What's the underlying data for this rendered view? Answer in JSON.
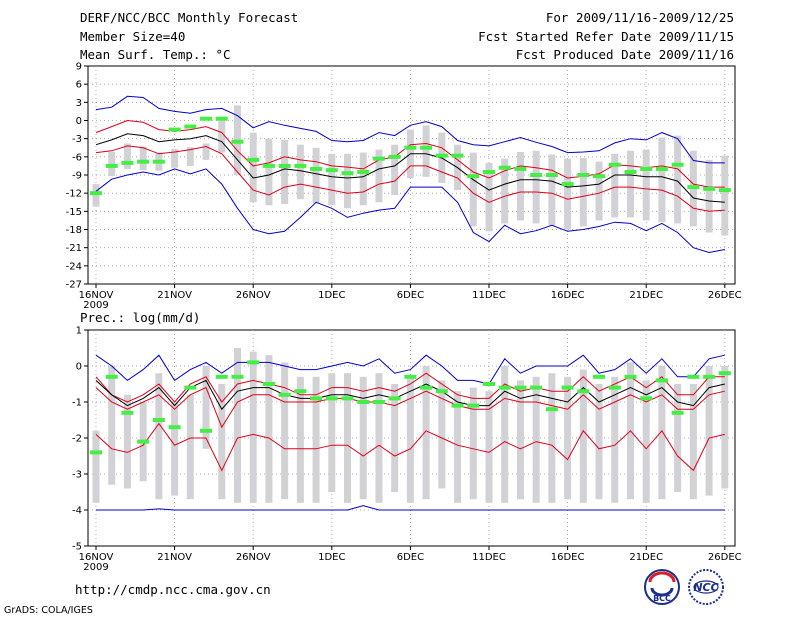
{
  "header": {
    "title": "DERF/NCC/BCC Monthly Forecast",
    "member_size": "Member Size=40",
    "variable": "Mean Surf. Temp.: °C",
    "period": "For 2009/11/16-2009/12/25",
    "start_date": "Fcst Started Refer Date 2009/11/15",
    "produced_date": "Fcst Produced Date 2009/11/16"
  },
  "footer": {
    "url": "http://cmdp.ncc.cma.gov.cn",
    "credit": "GrADS: COLA/IGES",
    "logo_left": "BCC",
    "logo_right": "NCC"
  },
  "colors": {
    "outer": "#0000cc",
    "inner": "#e00018",
    "median": "#000000",
    "box": "#d2d2d6",
    "obs": "#44ee44",
    "grid": "#999999"
  },
  "chart_data": [
    {
      "type": "line",
      "title": "Mean Surf. Temp.: °C",
      "ylim": [
        -27,
        9
      ],
      "yticks": [
        9,
        6,
        3,
        0,
        -3,
        -6,
        -9,
        -12,
        -15,
        -18,
        -21,
        -24,
        -27
      ],
      "xticks": [
        {
          "day": 0,
          "label": "16NOV",
          "sub": "2009"
        },
        {
          "day": 5,
          "label": "21NOV"
        },
        {
          "day": 10,
          "label": "26NOV"
        },
        {
          "day": 15,
          "label": "1DEC"
        },
        {
          "day": 20,
          "label": "6DEC"
        },
        {
          "day": 25,
          "label": "11DEC"
        },
        {
          "day": 30,
          "label": "16DEC"
        },
        {
          "day": 35,
          "label": "21DEC"
        },
        {
          "day": 40,
          "label": "26DEC"
        }
      ],
      "series": [
        {
          "name": "max",
          "role": "outer",
          "values": [
            1.8,
            2.2,
            4.0,
            3.8,
            2.0,
            1.5,
            1.2,
            1.8,
            2.0,
            0.8,
            -1.2,
            -0.2,
            -0.8,
            -1.3,
            -1.8,
            -3.3,
            -3.5,
            -3.3,
            -2.0,
            -2.5,
            -0.8,
            -0.2,
            -1.0,
            -3.3,
            -4.0,
            -4.2,
            -3.5,
            -2.8,
            -3.6,
            -4.3,
            -5.3,
            -5.2,
            -5.0,
            -3.7,
            -3.0,
            -3.2,
            -2.0,
            -3.0,
            -6.6,
            -7.0,
            -7.0
          ]
        },
        {
          "name": "p90",
          "role": "inner",
          "values": [
            -2.0,
            -1.0,
            0.0,
            -0.3,
            -1.5,
            -1.8,
            -1.5,
            -1.0,
            -2.0,
            -5.0,
            -7.5,
            -7.0,
            -6.0,
            -6.5,
            -6.8,
            -7.5,
            -7.7,
            -8.0,
            -6.5,
            -6.0,
            -4.0,
            -3.8,
            -4.5,
            -6.5,
            -8.5,
            -9.5,
            -8.3,
            -7.5,
            -7.8,
            -8.2,
            -9.5,
            -9.2,
            -8.8,
            -7.3,
            -7.5,
            -7.8,
            -7.5,
            -8.0,
            -10.5,
            -11.0,
            -11.0
          ]
        },
        {
          "name": "median",
          "role": "median",
          "values": [
            -4.0,
            -3.2,
            -2.2,
            -2.5,
            -3.5,
            -3.2,
            -3.0,
            -2.5,
            -3.5,
            -6.5,
            -9.5,
            -9.0,
            -8.0,
            -8.3,
            -8.8,
            -9.3,
            -9.5,
            -9.3,
            -8.0,
            -7.5,
            -5.5,
            -5.5,
            -6.2,
            -7.8,
            -9.8,
            -11.5,
            -10.5,
            -9.8,
            -9.8,
            -10.0,
            -11.0,
            -10.8,
            -10.5,
            -9.0,
            -9.0,
            -9.3,
            -9.3,
            -10.0,
            -12.8,
            -13.3,
            -13.5
          ]
        },
        {
          "name": "p10",
          "role": "inner",
          "values": [
            -5.3,
            -5.0,
            -4.2,
            -4.5,
            -5.5,
            -5.2,
            -4.8,
            -4.3,
            -5.5,
            -8.5,
            -11.5,
            -12.3,
            -11.0,
            -10.5,
            -11.0,
            -11.5,
            -12.0,
            -11.8,
            -10.5,
            -10.0,
            -7.5,
            -7.5,
            -8.5,
            -9.5,
            -12.0,
            -13.5,
            -12.5,
            -11.8,
            -11.8,
            -12.0,
            -13.0,
            -12.5,
            -12.0,
            -11.0,
            -11.0,
            -11.3,
            -11.5,
            -12.5,
            -14.5,
            -15.0,
            -14.8
          ]
        },
        {
          "name": "min",
          "role": "outer",
          "values": [
            -11.7,
            -9.7,
            -9.0,
            -8.5,
            -9.0,
            -8.0,
            -8.8,
            -8.0,
            -10.5,
            -14.5,
            -18.0,
            -18.7,
            -18.3,
            -16.0,
            -13.5,
            -14.5,
            -16.0,
            -15.3,
            -14.8,
            -14.5,
            -11.0,
            -11.0,
            -11.0,
            -13.5,
            -18.5,
            -20.0,
            -17.3,
            -18.7,
            -18.2,
            -17.3,
            -18.3,
            -18.0,
            -17.5,
            -16.8,
            -17.0,
            -18.2,
            -17.0,
            -18.5,
            -21.0,
            -21.8,
            -21.3
          ]
        },
        {
          "name": "box_top",
          "role": "box",
          "values": [
            -10.5,
            -5.2,
            -3.8,
            -4.3,
            -5.3,
            -4.7,
            -4.4,
            -3.8,
            0.5,
            2.5,
            -2.0,
            -3.0,
            -3.2,
            -4.0,
            -4.5,
            -5.5,
            -5.5,
            -5.3,
            -4.8,
            -4.0,
            -1.5,
            -0.8,
            -2.0,
            -4.0,
            -5.3,
            -7.0,
            -6.3,
            -5.2,
            -5.0,
            -5.6,
            -6.3,
            -6.2,
            -6.8,
            -5.5,
            -5.0,
            -4.8,
            -2.8,
            -2.5,
            -5.0,
            -6.5,
            -5.8
          ]
        },
        {
          "name": "box_bottom",
          "role": "box",
          "values": [
            -14.2,
            -9.2,
            -8.0,
            -8.2,
            -8.3,
            -7.8,
            -7.5,
            -6.5,
            -5.3,
            -9.0,
            -13.5,
            -14.0,
            -13.8,
            -13.0,
            -13.7,
            -14.0,
            -14.5,
            -14.0,
            -13.5,
            -12.3,
            -9.5,
            -9.3,
            -10.3,
            -11.5,
            -17.5,
            -18.3,
            -17.0,
            -16.5,
            -17.0,
            -17.3,
            -18.0,
            -17.5,
            -16.5,
            -16.0,
            -16.0,
            -16.5,
            -16.8,
            -17.0,
            -17.5,
            -18.5,
            -19.0
          ]
        },
        {
          "name": "observation",
          "role": "obs",
          "values": [
            -12.0,
            -7.5,
            -7.0,
            -6.8,
            -6.8,
            -1.5,
            -1.0,
            0.3,
            0.3,
            -3.5,
            -6.5,
            -7.5,
            -7.5,
            -7.5,
            -8.0,
            -8.2,
            -8.7,
            -8.5,
            -6.3,
            -6.0,
            -4.5,
            -4.5,
            -5.8,
            -5.8,
            -9.2,
            -8.5,
            -7.8,
            -8.0,
            -9.0,
            -9.0,
            -10.5,
            -9.0,
            -9.2,
            -7.3,
            -8.5,
            -8.0,
            -8.0,
            -7.3,
            -11.0,
            -11.3,
            -11.5
          ]
        }
      ]
    },
    {
      "type": "line",
      "title": "Prec.: log(mm/d)",
      "ylim": [
        -5,
        1
      ],
      "yticks": [
        1,
        0,
        -1,
        -2,
        -3,
        -4,
        -5
      ],
      "xticks": [
        {
          "day": 0,
          "label": "16NOV",
          "sub": "2009"
        },
        {
          "day": 5,
          "label": "21NOV"
        },
        {
          "day": 10,
          "label": "26NOV"
        },
        {
          "day": 15,
          "label": "1DEC"
        },
        {
          "day": 20,
          "label": "6DEC"
        },
        {
          "day": 25,
          "label": "11DEC"
        },
        {
          "day": 30,
          "label": "16DEC"
        },
        {
          "day": 35,
          "label": "21DEC"
        },
        {
          "day": 40,
          "label": "26DEC"
        }
      ],
      "series": [
        {
          "name": "max",
          "role": "outer",
          "values": [
            0.3,
            0.0,
            -0.4,
            -0.1,
            0.3,
            -0.4,
            -0.1,
            0.1,
            -0.2,
            0.1,
            0.1,
            0.1,
            0.0,
            -0.1,
            -0.1,
            0.0,
            0.1,
            0.0,
            0.2,
            -0.2,
            -0.1,
            0.3,
            0.0,
            -0.4,
            -0.4,
            -0.5,
            0.2,
            -0.2,
            0.0,
            0.0,
            0.0,
            0.3,
            -0.2,
            -0.1,
            0.2,
            -0.2,
            0.2,
            -0.3,
            -0.3,
            0.2,
            0.3
          ]
        },
        {
          "name": "p90",
          "role": "inner",
          "values": [
            -0.3,
            -0.8,
            -1.0,
            -0.8,
            -0.5,
            -1.0,
            -0.5,
            -0.3,
            -1.0,
            -0.5,
            -0.4,
            -0.5,
            -0.6,
            -0.8,
            -0.8,
            -0.6,
            -0.6,
            -0.7,
            -0.6,
            -0.7,
            -0.5,
            -0.2,
            -0.5,
            -0.8,
            -0.9,
            -0.9,
            -0.5,
            -0.7,
            -0.6,
            -0.7,
            -0.7,
            -0.3,
            -0.7,
            -0.5,
            -0.3,
            -0.6,
            -0.3,
            -0.8,
            -0.8,
            -0.3,
            -0.3
          ]
        },
        {
          "name": "median",
          "role": "median",
          "values": [
            -0.4,
            -0.8,
            -1.1,
            -0.9,
            -0.6,
            -1.1,
            -0.6,
            -0.4,
            -1.2,
            -0.7,
            -0.6,
            -0.6,
            -0.8,
            -0.9,
            -0.9,
            -0.8,
            -0.8,
            -0.9,
            -0.8,
            -0.9,
            -0.7,
            -0.5,
            -0.7,
            -1.0,
            -1.1,
            -1.1,
            -0.7,
            -0.9,
            -0.8,
            -0.9,
            -1.0,
            -0.6,
            -1.0,
            -0.8,
            -0.6,
            -0.8,
            -0.6,
            -1.0,
            -1.1,
            -0.6,
            -0.5
          ]
        },
        {
          "name": "p10",
          "role": "inner",
          "values": [
            -0.6,
            -1.0,
            -1.2,
            -1.0,
            -0.8,
            -1.2,
            -0.8,
            -0.6,
            -1.7,
            -1.0,
            -0.8,
            -0.8,
            -1.0,
            -1.0,
            -1.0,
            -0.9,
            -0.9,
            -1.0,
            -1.0,
            -1.1,
            -0.9,
            -0.7,
            -0.9,
            -1.1,
            -1.2,
            -1.2,
            -0.9,
            -1.0,
            -1.0,
            -1.1,
            -1.2,
            -0.8,
            -1.2,
            -1.0,
            -0.8,
            -1.0,
            -0.8,
            -1.2,
            -1.2,
            -0.8,
            -0.7
          ]
        },
        {
          "name": "p5",
          "role": "inner",
          "values": [
            -1.9,
            -2.3,
            -2.4,
            -2.2,
            -1.6,
            -2.2,
            -2.0,
            -2.0,
            -2.9,
            -2.0,
            -1.9,
            -2.0,
            -2.3,
            -2.3,
            -2.3,
            -2.2,
            -2.2,
            -2.5,
            -2.2,
            -2.5,
            -2.3,
            -1.8,
            -2.0,
            -2.2,
            -2.3,
            -2.4,
            -2.1,
            -2.3,
            -2.1,
            -2.2,
            -2.6,
            -1.8,
            -2.3,
            -2.2,
            -1.8,
            -2.3,
            -1.8,
            -2.5,
            -2.9,
            -2.0,
            -1.9
          ]
        },
        {
          "name": "min",
          "role": "outer",
          "values": [
            -4.0,
            -4.0,
            -4.0,
            -4.0,
            -3.97,
            -4.0,
            -4.0,
            -4.0,
            -4.0,
            -4.0,
            -4.0,
            -4.0,
            -4.0,
            -4.0,
            -4.0,
            -4.0,
            -4.0,
            -3.88,
            -4.0,
            -4.0,
            -4.0,
            -4.0,
            -4.0,
            -4.0,
            -4.0,
            -4.0,
            -4.0,
            -4.0,
            -4.0,
            -4.0,
            -4.0,
            -4.0,
            -4.0,
            -4.0,
            -4.0,
            -4.0,
            -4.0,
            -4.0,
            -4.0,
            -4.0,
            -4.0
          ]
        },
        {
          "name": "box_top",
          "role": "box",
          "values": [
            -1.8,
            0.0,
            -0.8,
            -1.0,
            -0.2,
            -1.0,
            -0.8,
            0.0,
            -0.5,
            0.5,
            0.4,
            0.3,
            0.1,
            -0.3,
            -0.3,
            -0.2,
            -0.2,
            -0.3,
            -0.2,
            -0.5,
            -0.3,
            0.0,
            -0.4,
            -0.7,
            -0.6,
            -0.7,
            0.0,
            -0.4,
            -0.3,
            -0.2,
            -0.3,
            -0.1,
            -0.5,
            -0.3,
            0.1,
            -0.4,
            0.0,
            -0.5,
            -0.5,
            0.0,
            0.0
          ]
        },
        {
          "name": "box_bottom",
          "role": "box",
          "values": [
            -3.8,
            -3.3,
            -3.4,
            -3.2,
            -3.7,
            -3.6,
            -3.7,
            -2.3,
            -3.7,
            -3.8,
            -3.8,
            -3.8,
            -3.7,
            -3.8,
            -3.8,
            -3.5,
            -3.8,
            -3.7,
            -3.8,
            -3.5,
            -3.8,
            -3.7,
            -3.4,
            -3.8,
            -3.7,
            -3.8,
            -3.8,
            -3.7,
            -3.8,
            -3.8,
            -3.7,
            -3.8,
            -3.7,
            -3.8,
            -3.7,
            -3.8,
            -3.7,
            -3.5,
            -3.7,
            -3.6,
            -3.4
          ]
        },
        {
          "name": "observation",
          "role": "obs",
          "values": [
            -2.4,
            -0.3,
            -1.3,
            -2.1,
            -1.5,
            -1.7,
            -0.6,
            -1.8,
            -0.3,
            -0.3,
            0.1,
            -0.5,
            -0.8,
            -0.7,
            -0.9,
            -0.9,
            -0.9,
            -1.0,
            -1.0,
            -0.9,
            -0.3,
            -0.6,
            -0.7,
            -1.1,
            -1.1,
            -0.5,
            -0.6,
            -0.6,
            -0.6,
            -1.2,
            -0.6,
            -0.7,
            -0.3,
            -0.6,
            -0.3,
            -0.9,
            -0.4,
            -1.3,
            -0.3,
            -0.3,
            -0.2
          ]
        }
      ]
    }
  ]
}
